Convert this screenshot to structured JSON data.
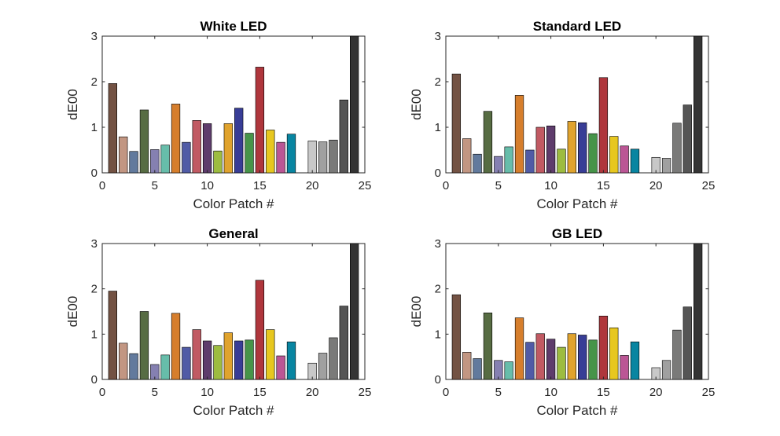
{
  "colors": [
    "#735243",
    "#c29682",
    "#627a9d",
    "#576c43",
    "#8580b1",
    "#67bdaa",
    "#d67e2c",
    "#505ba6",
    "#c15a63",
    "#5e3c6c",
    "#9dbc40",
    "#e0a32e",
    "#383d96",
    "#469449",
    "#af363c",
    "#e7c71f",
    "#bb5695",
    "#0885a1",
    "#f3f3f2",
    "#c8c8c8",
    "#a0a0a0",
    "#7a7a79",
    "#555555",
    "#343434"
  ],
  "chart_data": [
    {
      "type": "bar",
      "title": "White LED",
      "xlabel": "Color Patch #",
      "ylabel": "dE00",
      "xlim": [
        0,
        25
      ],
      "ylim": [
        0,
        3
      ],
      "xticks": [
        0,
        5,
        10,
        15,
        20,
        25
      ],
      "yticks": [
        0,
        1,
        2,
        3
      ],
      "x": [
        1,
        2,
        3,
        4,
        5,
        6,
        7,
        8,
        9,
        10,
        11,
        12,
        13,
        14,
        15,
        16,
        17,
        18,
        19,
        20,
        21,
        22,
        23,
        24
      ],
      "values": [
        1.96,
        0.79,
        0.47,
        1.38,
        0.51,
        0.61,
        1.51,
        0.67,
        1.15,
        1.08,
        0.48,
        1.08,
        1.42,
        0.87,
        2.32,
        0.94,
        0.67,
        0.85,
        0.0,
        0.7,
        0.68,
        0.72,
        1.6,
        3.05
      ]
    },
    {
      "type": "bar",
      "title": "Standard LED",
      "xlabel": "Color Patch #",
      "ylabel": "dE00",
      "xlim": [
        0,
        25
      ],
      "ylim": [
        0,
        3
      ],
      "xticks": [
        0,
        5,
        10,
        15,
        20,
        25
      ],
      "yticks": [
        0,
        1,
        2,
        3
      ],
      "x": [
        1,
        2,
        3,
        4,
        5,
        6,
        7,
        8,
        9,
        10,
        11,
        12,
        13,
        14,
        15,
        16,
        17,
        18,
        19,
        20,
        21,
        22,
        23,
        24
      ],
      "values": [
        2.17,
        0.75,
        0.41,
        1.35,
        0.36,
        0.57,
        1.7,
        0.5,
        1.0,
        1.03,
        0.52,
        1.13,
        1.1,
        0.86,
        2.09,
        0.8,
        0.59,
        0.52,
        0.0,
        0.34,
        0.32,
        1.09,
        1.49,
        3.05
      ]
    },
    {
      "type": "bar",
      "title": "General",
      "xlabel": "Color Patch #",
      "ylabel": "dE00",
      "xlim": [
        0,
        25
      ],
      "ylim": [
        0,
        3
      ],
      "xticks": [
        0,
        5,
        10,
        15,
        20,
        25
      ],
      "yticks": [
        0,
        1,
        2,
        3
      ],
      "x": [
        1,
        2,
        3,
        4,
        5,
        6,
        7,
        8,
        9,
        10,
        11,
        12,
        13,
        14,
        15,
        16,
        17,
        18,
        19,
        20,
        21,
        22,
        23,
        24
      ],
      "values": [
        1.95,
        0.8,
        0.57,
        1.5,
        0.33,
        0.54,
        1.46,
        0.71,
        1.1,
        0.85,
        0.75,
        1.03,
        0.85,
        0.87,
        2.19,
        1.1,
        0.52,
        0.83,
        0.0,
        0.36,
        0.58,
        0.92,
        1.62,
        3.05
      ]
    },
    {
      "type": "bar",
      "title": "GB LED",
      "xlabel": "Color Patch #",
      "ylabel": "dE00",
      "xlim": [
        0,
        25
      ],
      "ylim": [
        0,
        3
      ],
      "xticks": [
        0,
        5,
        10,
        15,
        20,
        25
      ],
      "yticks": [
        0,
        1,
        2,
        3
      ],
      "x": [
        1,
        2,
        3,
        4,
        5,
        6,
        7,
        8,
        9,
        10,
        11,
        12,
        13,
        14,
        15,
        16,
        17,
        18,
        19,
        20,
        21,
        22,
        23,
        24
      ],
      "values": [
        1.87,
        0.6,
        0.46,
        1.47,
        0.42,
        0.39,
        1.36,
        0.82,
        1.01,
        0.89,
        0.71,
        1.01,
        0.98,
        0.87,
        1.4,
        1.14,
        0.53,
        0.83,
        0.0,
        0.26,
        0.42,
        1.09,
        1.6,
        3.05
      ]
    }
  ]
}
